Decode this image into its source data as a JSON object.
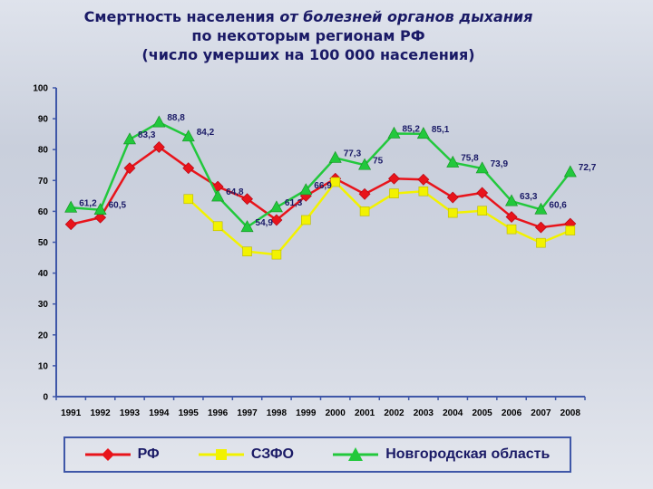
{
  "header": {
    "line1_prefix": "Смертность населения ",
    "line1_italic": "от болезней органов дыхания",
    "line2": "по некоторым регионам РФ",
    "line3": "(число умерших на 100 000 населения)"
  },
  "chart_data": {
    "type": "line",
    "title": "Смертность населения от болезней органов дыхания по некоторым регионам РФ (число умерших на 100 000 населения)",
    "xlabel": "",
    "ylabel": "",
    "x": [
      "1991",
      "1992",
      "1993",
      "1994",
      "1995",
      "1996",
      "1997",
      "1998",
      "1999",
      "2000",
      "2001",
      "2002",
      "2003",
      "2004",
      "2005",
      "2006",
      "2007",
      "2008"
    ],
    "ylim": [
      0,
      100
    ],
    "yticks": [
      0,
      10,
      20,
      30,
      40,
      50,
      60,
      70,
      80,
      90,
      100
    ],
    "grid": false,
    "legend": "bottom",
    "series": [
      {
        "name": "РФ",
        "color": "#e8141b",
        "marker": "diamond",
        "values": [
          55.8,
          58.0,
          74.0,
          80.8,
          74.0,
          68.0,
          64.0,
          57.2,
          65.0,
          70.6,
          65.6,
          70.6,
          70.3,
          64.5,
          66.0,
          58.2,
          54.8,
          56.0
        ],
        "labels": []
      },
      {
        "name": "СЗФО",
        "color": "#f2f200",
        "marker": "square",
        "values": [
          null,
          null,
          null,
          null,
          64.0,
          55.2,
          47.0,
          46.0,
          57.2,
          69.5,
          60.0,
          65.8,
          66.5,
          59.5,
          60.2,
          54.2,
          49.8,
          53.8
        ],
        "labels": []
      },
      {
        "name": "Новгородская область",
        "color": "#22c83c",
        "marker": "triangle",
        "values": [
          61.2,
          60.5,
          83.3,
          88.8,
          84.2,
          64.8,
          54.9,
          61.3,
          66.9,
          77.3,
          75.0,
          85.2,
          85.1,
          75.8,
          73.9,
          63.3,
          60.6,
          72.7
        ],
        "labels": [
          "61,2",
          "60,5",
          "83,3",
          "88,8",
          "84,2",
          "64,8",
          "54,9",
          "61,3",
          "66,9",
          "77,3",
          "75",
          "85,2",
          "85,1",
          "75,8",
          "73,9",
          "63,3",
          "60,6",
          "72,7"
        ]
      }
    ]
  }
}
